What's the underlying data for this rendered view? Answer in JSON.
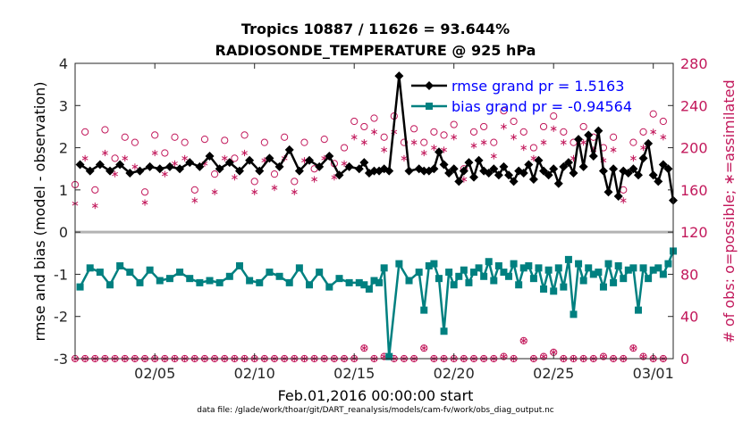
{
  "chart_data": {
    "type": "line",
    "title_line1": "Tropics 10887 / 11626 = 93.644%",
    "title_line2": "RADIOSONDE_TEMPERATURE @ 925 hPa",
    "xlabel": "Feb.01,2016 00:00:00 start",
    "ylabel": "rmse and bias (model - observation)",
    "y2label": "# of obs: o=possible; ∗=assimilated",
    "footer": "data file: /glade/work/thoar/git/DART_reanalysis/models/cam-fv/work/obs_diag_output.nc",
    "xlim": [
      1,
      31
    ],
    "xticks": [
      5,
      10,
      15,
      20,
      25,
      30
    ],
    "xtick_labels": [
      "02/05",
      "02/10",
      "02/15",
      "02/20",
      "02/25",
      "03/01"
    ],
    "ylim": [
      -3,
      4
    ],
    "yticks": [
      4,
      3,
      2,
      1,
      0,
      -1,
      -2,
      -3
    ],
    "ytick_labels": [
      "4",
      "3",
      "2",
      "1",
      "0",
      "-1",
      "-2",
      "-3"
    ],
    "y2lim": [
      0,
      280
    ],
    "y2ticks": [
      280,
      240,
      200,
      160,
      120,
      80,
      40,
      0
    ],
    "y2tick_labels": [
      "280",
      "240",
      "200",
      "160",
      "120",
      "80",
      "40",
      "0"
    ],
    "colors": {
      "rmse": "#000000",
      "bias": "#008080",
      "obs": "#c2185b",
      "zero_line": "#b3b3b3"
    },
    "legend": [
      {
        "label": "rmse grand pr = 1.5163",
        "series": "rmse"
      },
      {
        "label": "bias grand pr = -0.94564",
        "series": "bias"
      }
    ],
    "series": [
      {
        "name": "rmse",
        "x": [
          1.25,
          1.75,
          2.25,
          2.75,
          3.25,
          3.75,
          4.25,
          4.75,
          5.25,
          5.75,
          6.25,
          6.75,
          7.25,
          7.75,
          8.25,
          8.75,
          9.25,
          9.75,
          10.25,
          10.75,
          11.25,
          11.75,
          12.25,
          12.75,
          13.25,
          13.75,
          14.25,
          14.75,
          15.25,
          15.5,
          15.75,
          16.0,
          16.25,
          16.5,
          16.75,
          17.25,
          17.75,
          18.25,
          18.5,
          18.75,
          19.0,
          19.25,
          19.5,
          19.75,
          20.0,
          20.25,
          20.5,
          20.75,
          21.0,
          21.25,
          21.5,
          21.75,
          22.0,
          22.25,
          22.5,
          22.75,
          23.0,
          23.25,
          23.5,
          23.75,
          24.0,
          24.25,
          24.5,
          24.75,
          25.0,
          25.25,
          25.5,
          25.75,
          26.0,
          26.25,
          26.5,
          26.75,
          27.0,
          27.25,
          27.5,
          27.75,
          28.0,
          28.25,
          28.5,
          28.75,
          29.0,
          29.25,
          29.5,
          29.75,
          30.0,
          30.25,
          30.5,
          30.75,
          31.0
        ],
        "values": [
          1.6,
          1.45,
          1.6,
          1.45,
          1.6,
          1.4,
          1.45,
          1.55,
          1.5,
          1.55,
          1.5,
          1.65,
          1.55,
          1.8,
          1.5,
          1.65,
          1.45,
          1.7,
          1.45,
          1.75,
          1.55,
          1.95,
          1.45,
          1.7,
          1.55,
          1.8,
          1.35,
          1.55,
          1.5,
          1.65,
          1.4,
          1.45,
          1.45,
          1.5,
          1.45,
          3.7,
          1.45,
          1.5,
          1.45,
          1.45,
          1.5,
          1.9,
          1.6,
          1.4,
          1.5,
          1.2,
          1.45,
          1.65,
          1.3,
          1.7,
          1.45,
          1.4,
          1.5,
          1.35,
          1.55,
          1.35,
          1.2,
          1.45,
          1.4,
          1.6,
          1.25,
          1.7,
          1.45,
          1.35,
          1.5,
          1.15,
          1.55,
          1.65,
          1.4,
          2.2,
          1.55,
          2.3,
          1.8,
          2.4,
          1.45,
          0.95,
          1.5,
          0.85,
          1.45,
          1.4,
          1.5,
          1.35,
          1.75,
          2.1,
          1.35,
          1.2,
          1.6,
          1.5,
          0.75
        ]
      },
      {
        "name": "bias",
        "x": [
          1.25,
          1.75,
          2.25,
          2.75,
          3.25,
          3.75,
          4.25,
          4.75,
          5.25,
          5.75,
          6.25,
          6.75,
          7.25,
          7.75,
          8.25,
          8.75,
          9.25,
          9.75,
          10.25,
          10.75,
          11.25,
          11.75,
          12.25,
          12.75,
          13.25,
          13.75,
          14.25,
          14.75,
          15.25,
          15.5,
          15.75,
          16.0,
          16.25,
          16.5,
          16.75,
          17.25,
          17.75,
          18.25,
          18.5,
          18.75,
          19.0,
          19.25,
          19.5,
          19.75,
          20.0,
          20.25,
          20.5,
          20.75,
          21.0,
          21.25,
          21.5,
          21.75,
          22.0,
          22.25,
          22.5,
          22.75,
          23.0,
          23.25,
          23.5,
          23.75,
          24.0,
          24.25,
          24.5,
          24.75,
          25.0,
          25.25,
          25.5,
          25.75,
          26.0,
          26.25,
          26.5,
          26.75,
          27.0,
          27.25,
          27.5,
          27.75,
          28.0,
          28.25,
          28.5,
          28.75,
          29.0,
          29.25,
          29.5,
          29.75,
          30.0,
          30.25,
          30.5,
          30.75,
          31.0
        ],
        "values": [
          -1.3,
          -0.85,
          -0.95,
          -1.25,
          -0.8,
          -0.95,
          -1.2,
          -0.9,
          -1.15,
          -1.1,
          -0.95,
          -1.1,
          -1.2,
          -1.15,
          -1.2,
          -1.05,
          -0.8,
          -1.15,
          -1.2,
          -0.95,
          -1.05,
          -1.2,
          -0.85,
          -1.25,
          -0.95,
          -1.3,
          -1.1,
          -1.2,
          -1.2,
          -1.25,
          -1.35,
          -1.15,
          -1.2,
          -0.85,
          -2.95,
          -0.75,
          -1.15,
          -0.95,
          -1.85,
          -0.8,
          -0.75,
          -1.1,
          -2.35,
          -0.95,
          -1.25,
          -1.05,
          -0.9,
          -1.2,
          -0.95,
          -0.85,
          -1.05,
          -0.7,
          -1.15,
          -0.8,
          -0.95,
          -1.05,
          -0.75,
          -1.25,
          -0.85,
          -0.8,
          -1.1,
          -0.85,
          -1.35,
          -0.9,
          -1.4,
          -0.85,
          -1.3,
          -0.65,
          -1.95,
          -0.75,
          -1.15,
          -0.85,
          -1.0,
          -0.95,
          -1.3,
          -0.75,
          -1.2,
          -0.8,
          -1.1,
          -0.9,
          -0.85,
          -1.85,
          -0.85,
          -1.1,
          -0.9,
          -0.85,
          -1.0,
          -0.75,
          -0.45
        ]
      },
      {
        "name": "possible",
        "x": [
          1.0,
          1.5,
          2.0,
          2.5,
          3.0,
          3.5,
          4.0,
          4.5,
          5.0,
          5.5,
          6.0,
          6.5,
          7.0,
          7.5,
          8.0,
          8.5,
          9.0,
          9.5,
          10.0,
          10.5,
          11.0,
          11.5,
          12.0,
          12.5,
          13.0,
          13.5,
          14.0,
          14.5,
          15.0,
          15.5,
          16.0,
          16.5,
          17.0,
          17.5,
          18.0,
          18.5,
          19.0,
          19.5,
          20.0,
          20.5,
          21.0,
          21.5,
          22.0,
          22.5,
          23.0,
          23.5,
          24.0,
          24.5,
          25.0,
          25.5,
          26.0,
          26.5,
          27.0,
          27.5,
          28.0,
          28.5,
          29.0,
          29.5,
          30.0,
          30.5
        ],
        "values": [
          165,
          215,
          160,
          217,
          190,
          210,
          205,
          158,
          212,
          195,
          210,
          205,
          160,
          208,
          175,
          207,
          190,
          212,
          168,
          205,
          175,
          210,
          168,
          205,
          180,
          208,
          185,
          200,
          225,
          220,
          228,
          210,
          230,
          205,
          218,
          205,
          215,
          212,
          222,
          180,
          215,
          220,
          205,
          235,
          225,
          215,
          200,
          220,
          230,
          215,
          205,
          220,
          210,
          200,
          210,
          160,
          205,
          215,
          232,
          225
        ]
      },
      {
        "name": "assimilated",
        "x": [
          1.0,
          1.5,
          2.0,
          2.5,
          3.0,
          3.5,
          4.0,
          4.5,
          5.0,
          5.5,
          6.0,
          6.5,
          7.0,
          7.5,
          8.0,
          8.5,
          9.0,
          9.5,
          10.0,
          10.5,
          11.0,
          11.5,
          12.0,
          12.5,
          13.0,
          13.5,
          14.0,
          14.5,
          15.0,
          15.5,
          16.0,
          16.5,
          17.0,
          17.5,
          18.0,
          18.5,
          19.0,
          19.5,
          20.0,
          20.5,
          21.0,
          21.5,
          22.0,
          22.5,
          23.0,
          23.5,
          24.0,
          24.5,
          25.0,
          25.5,
          26.0,
          26.5,
          27.0,
          27.5,
          28.0,
          28.5,
          29.0,
          29.5,
          30.0,
          30.5
        ],
        "values": [
          147,
          190,
          145,
          195,
          175,
          190,
          182,
          148,
          195,
          175,
          185,
          190,
          150,
          185,
          158,
          190,
          172,
          195,
          158,
          188,
          162,
          190,
          158,
          188,
          170,
          190,
          172,
          185,
          210,
          205,
          215,
          198,
          215,
          190,
          205,
          195,
          200,
          198,
          210,
          170,
          202,
          205,
          192,
          220,
          210,
          200,
          190,
          205,
          218,
          205,
          190,
          205,
          198,
          188,
          198,
          150,
          190,
          200,
          215,
          210
        ]
      },
      {
        "name": "possible_low",
        "x": [
          1.0,
          1.5,
          2.0,
          2.5,
          3.0,
          3.5,
          4.0,
          4.5,
          5.0,
          5.5,
          6.0,
          6.5,
          7.0,
          7.5,
          8.0,
          8.5,
          9.0,
          9.5,
          10.0,
          10.5,
          11.0,
          11.5,
          12.0,
          12.5,
          13.0,
          13.5,
          14.0,
          14.5,
          15.0,
          15.5,
          16.0,
          16.5,
          17.0,
          17.5,
          18.0,
          18.5,
          19.0,
          19.5,
          20.0,
          20.5,
          21.0,
          21.5,
          22.0,
          22.5,
          23.0,
          23.5,
          24.0,
          24.5,
          25.0,
          25.5,
          26.0,
          26.5,
          27.0,
          27.5,
          28.0,
          28.5,
          29.0,
          29.5,
          30.0,
          30.5
        ],
        "values": [
          0,
          0,
          0,
          0,
          0,
          0,
          0,
          0,
          0,
          0,
          0,
          0,
          0,
          0,
          0,
          0,
          0,
          0,
          0,
          0,
          0,
          0,
          0,
          0,
          0,
          0,
          0,
          0,
          0,
          10,
          0,
          2,
          0,
          0,
          0,
          10,
          0,
          0,
          0,
          0,
          0,
          0,
          0,
          2,
          0,
          17,
          0,
          2,
          6,
          0,
          0,
          0,
          0,
          2,
          0,
          0,
          10,
          2,
          0,
          0
        ]
      },
      {
        "name": "assimilated_low",
        "x": [
          1.0,
          1.5,
          2.0,
          2.5,
          3.0,
          3.5,
          4.0,
          4.5,
          5.0,
          5.5,
          6.0,
          6.5,
          7.0,
          7.5,
          8.0,
          8.5,
          9.0,
          9.5,
          10.0,
          10.5,
          11.0,
          11.5,
          12.0,
          12.5,
          13.0,
          13.5,
          14.0,
          14.5,
          15.0,
          15.5,
          16.0,
          16.5,
          17.0,
          17.5,
          18.0,
          18.5,
          19.0,
          19.5,
          20.0,
          20.5,
          21.0,
          21.5,
          22.0,
          22.5,
          23.0,
          23.5,
          24.0,
          24.5,
          25.0,
          25.5,
          26.0,
          26.5,
          27.0,
          27.5,
          28.0,
          28.5,
          29.0,
          29.5,
          30.0,
          30.5
        ],
        "values": [
          0,
          0,
          0,
          0,
          0,
          0,
          0,
          0,
          0,
          0,
          0,
          0,
          0,
          0,
          0,
          0,
          0,
          0,
          0,
          0,
          0,
          0,
          0,
          0,
          0,
          0,
          0,
          0,
          0,
          10,
          0,
          2,
          0,
          0,
          0,
          10,
          0,
          0,
          0,
          0,
          0,
          0,
          0,
          2,
          0,
          17,
          0,
          2,
          6,
          0,
          0,
          0,
          0,
          2,
          0,
          0,
          10,
          2,
          0,
          0
        ]
      }
    ]
  }
}
